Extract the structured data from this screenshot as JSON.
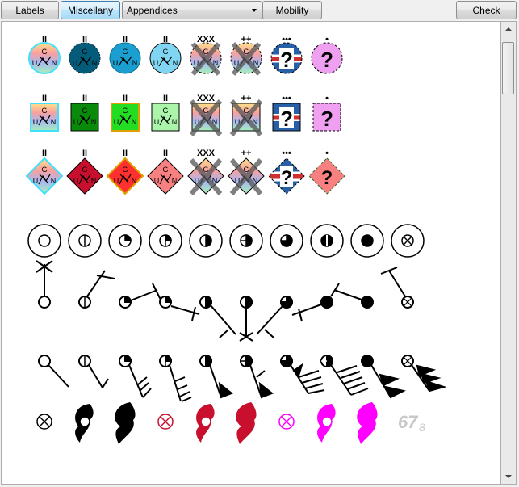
{
  "toolbar": {
    "labels_button": "Labels",
    "miscellany_button": "Miscellany",
    "appendices_select": "Appendices",
    "mobility_button": "Mobility",
    "check_button": "Check"
  },
  "symbols": {
    "unit_letters": {
      "top": "G",
      "left": "U",
      "right": "N"
    },
    "modifiers": {
      "pair": "II",
      "xxx": "XXX",
      "plusplus": "++",
      "dots": "•••",
      "dot": "•",
      "unknown": "?"
    },
    "label_67": "67",
    "label_8": "8"
  },
  "colors": {
    "friendly_dark": "#055b7a",
    "friendly_mid": "#1a8fc0",
    "friendly_light": "#80d6f2",
    "hostile_red": "#c8102e",
    "magenta": "#ff00ff",
    "gray_label": "#c8c8c8"
  }
}
